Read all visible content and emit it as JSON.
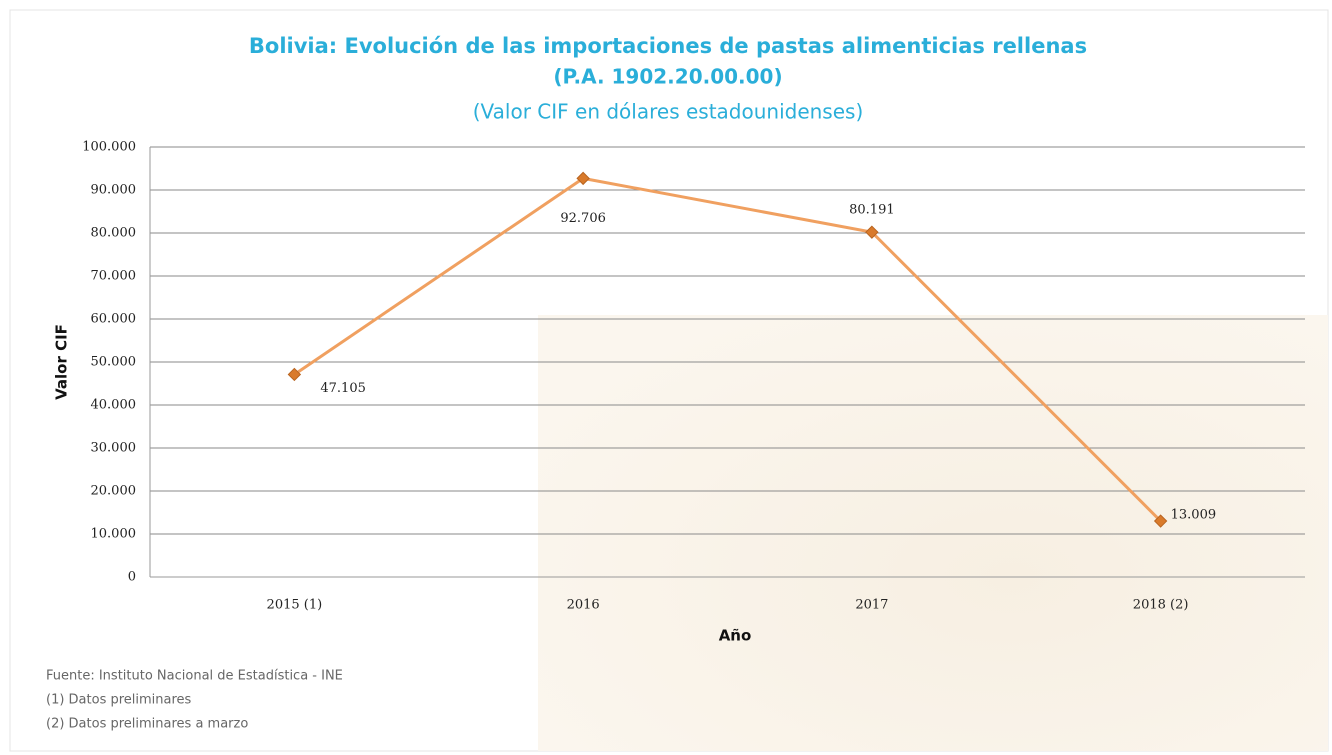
{
  "chart_data": {
    "type": "line",
    "title": "Bolivia: Evolución de las importaciones de pastas alimenticias rellenas",
    "subtitle": "(P.A. 1902.20.00.00)",
    "subtitle2": "(Valor CIF en dólares estadounidenses)",
    "y_label": "Valor CIF",
    "x_label": "Año",
    "categories": [
      "2015 (1)",
      "2016",
      "2017",
      "2018 (2)"
    ],
    "values": [
      47105,
      92706,
      80191,
      13009
    ],
    "value_labels": [
      "47.105",
      "92.706",
      "80.191",
      "13.009"
    ],
    "color": "#f0a060",
    "marker_color": "#d97a2b",
    "ylim": [
      0,
      100000
    ],
    "yticks": [
      0,
      {
        "value": 10000,
        "label": "10.000"
      },
      {
        "value": 20000,
        "label": "20.000"
      },
      {
        "value": 30000,
        "label": "30.000"
      },
      {
        "value": 40000,
        "label": "40.000"
      },
      {
        "value": 50000,
        "label": "50.000"
      },
      {
        "value": 60000,
        "label": "60.000"
      },
      {
        "value": 70000,
        "label": "70.000"
      },
      {
        "value": 80000,
        "label": "80.000"
      },
      {
        "value": 90000,
        "label": "90.000"
      },
      {
        "value": 100000,
        "label": "100.000"
      }
    ],
    "grid": true,
    "notes": [
      "Fuente: Instituto Nacional de Estadística - INE",
      "(1) Datos preliminares",
      "(2) Datos preliminares a marzo"
    ]
  }
}
